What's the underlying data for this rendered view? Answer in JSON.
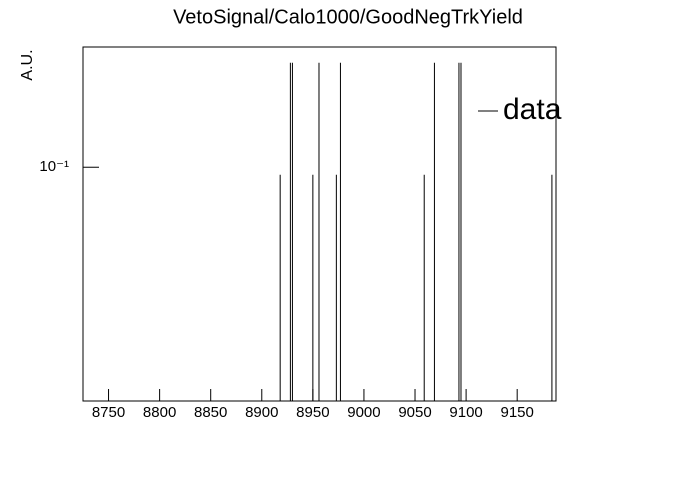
{
  "chart_data": {
    "type": "spikes",
    "title": "VetoSignal/Calo1000/GoodNegTrkYield",
    "y_label": "A.U.",
    "x": [
      8918,
      8928,
      8930,
      8950,
      8956,
      8973,
      8977,
      9059,
      9069,
      9093,
      9095,
      9184
    ],
    "series": [
      {
        "name": "data",
        "color": "#000000",
        "values": [
          0.094,
          0.237,
          0.237,
          0.094,
          0.237,
          0.094,
          0.237,
          0.094,
          0.237,
          0.237,
          0.237,
          0.094
        ]
      }
    ],
    "xlim": [
      8725,
      9188
    ],
    "xticks": [
      8750,
      8800,
      8850,
      8900,
      8950,
      9000,
      9050,
      9100,
      9150
    ],
    "ylim": [
      0.0145,
      0.27
    ],
    "yticks": [
      {
        "value": 0.1,
        "label": "10⁻¹"
      }
    ],
    "log_y": true,
    "legend": "top-right"
  }
}
